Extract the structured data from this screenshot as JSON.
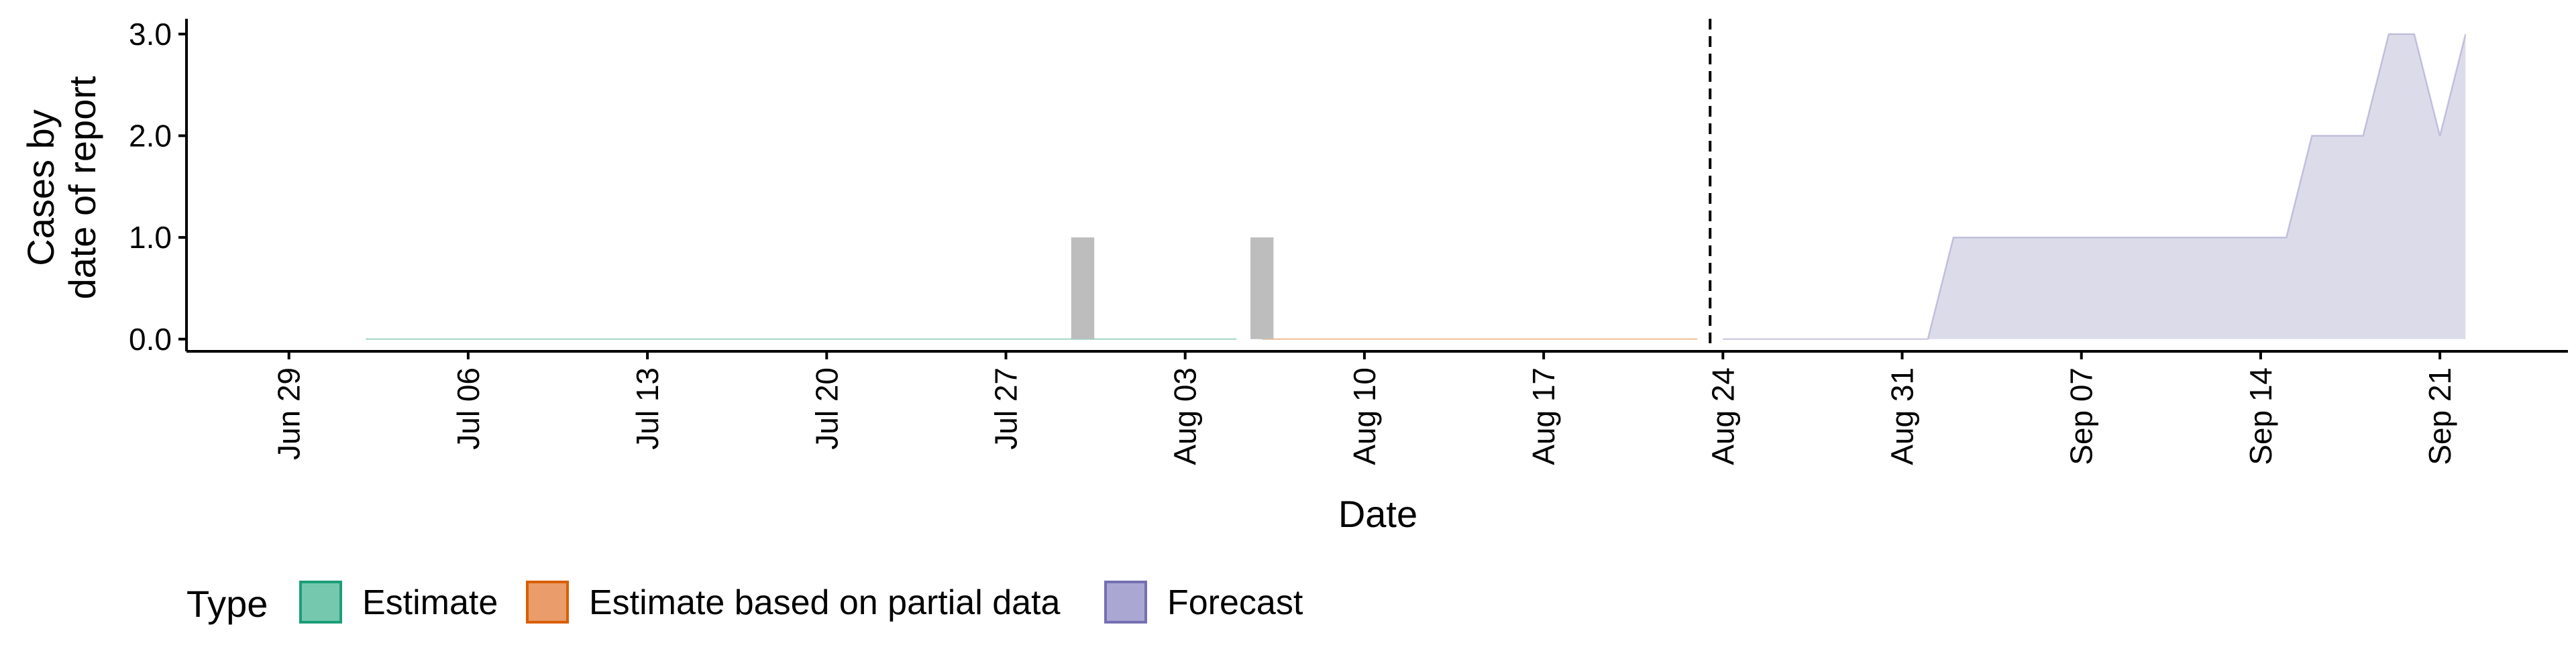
{
  "chart_data": {
    "type": "area",
    "xlabel": "Date",
    "ylabel_lines": [
      "Cases by",
      "date of report"
    ],
    "ylim": [
      -0.12,
      3.15
    ],
    "xlim": [
      "2020-06-25",
      "2020-09-26"
    ],
    "y_ticks": [
      {
        "value": 0,
        "label": "0.0"
      },
      {
        "value": 1,
        "label": "1.0"
      },
      {
        "value": 2,
        "label": "2.0"
      },
      {
        "value": 3,
        "label": "3.0"
      }
    ],
    "x_ticks": [
      {
        "date": "2020-06-29",
        "label": "Jun 29"
      },
      {
        "date": "2020-07-06",
        "label": "Jul 06"
      },
      {
        "date": "2020-07-13",
        "label": "Jul 13"
      },
      {
        "date": "2020-07-20",
        "label": "Jul 20"
      },
      {
        "date": "2020-07-27",
        "label": "Jul 27"
      },
      {
        "date": "2020-08-03",
        "label": "Aug 03"
      },
      {
        "date": "2020-08-10",
        "label": "Aug 10"
      },
      {
        "date": "2020-08-17",
        "label": "Aug 17"
      },
      {
        "date": "2020-08-24",
        "label": "Aug 24"
      },
      {
        "date": "2020-08-31",
        "label": "Aug 31"
      },
      {
        "date": "2020-09-07",
        "label": "Sep 07"
      },
      {
        "date": "2020-09-14",
        "label": "Sep 14"
      },
      {
        "date": "2020-09-21",
        "label": "Sep 21"
      }
    ],
    "observed_bars": [
      {
        "date": "2020-07-30",
        "value": 1
      },
      {
        "date": "2020-08-06",
        "value": 1
      }
    ],
    "series": [
      {
        "name": "Estimate",
        "color": "#1b9e77",
        "fill": "#66c2a5",
        "points": [
          {
            "x": "2020-07-02",
            "y": 0
          },
          {
            "x": "2020-08-05",
            "y": 0
          }
        ]
      },
      {
        "name": "Estimate based on partial data",
        "color": "#d95f02",
        "fill": "#e8915a",
        "points": [
          {
            "x": "2020-08-06",
            "y": 0
          },
          {
            "x": "2020-08-23",
            "y": 0
          }
        ]
      },
      {
        "name": "Forecast",
        "color": "#7570b3",
        "fill": "#dcdbe9",
        "points": [
          {
            "x": "2020-08-24",
            "y": 0
          },
          {
            "x": "2020-08-25",
            "y": 0
          },
          {
            "x": "2020-08-26",
            "y": 0
          },
          {
            "x": "2020-08-27",
            "y": 0
          },
          {
            "x": "2020-08-28",
            "y": 0
          },
          {
            "x": "2020-08-29",
            "y": 0
          },
          {
            "x": "2020-08-30",
            "y": 0
          },
          {
            "x": "2020-08-31",
            "y": 0
          },
          {
            "x": "2020-09-01",
            "y": 0
          },
          {
            "x": "2020-09-02",
            "y": 1
          },
          {
            "x": "2020-09-03",
            "y": 1
          },
          {
            "x": "2020-09-04",
            "y": 1
          },
          {
            "x": "2020-09-05",
            "y": 1
          },
          {
            "x": "2020-09-06",
            "y": 1
          },
          {
            "x": "2020-09-07",
            "y": 1
          },
          {
            "x": "2020-09-08",
            "y": 1
          },
          {
            "x": "2020-09-09",
            "y": 1
          },
          {
            "x": "2020-09-10",
            "y": 1
          },
          {
            "x": "2020-09-11",
            "y": 1
          },
          {
            "x": "2020-09-12",
            "y": 1
          },
          {
            "x": "2020-09-13",
            "y": 1
          },
          {
            "x": "2020-09-14",
            "y": 1
          },
          {
            "x": "2020-09-15",
            "y": 1
          },
          {
            "x": "2020-09-16",
            "y": 2
          },
          {
            "x": "2020-09-17",
            "y": 2
          },
          {
            "x": "2020-09-18",
            "y": 2
          },
          {
            "x": "2020-09-19",
            "y": 3
          },
          {
            "x": "2020-09-20",
            "y": 3
          },
          {
            "x": "2020-09-21",
            "y": 2
          },
          {
            "x": "2020-09-22",
            "y": 3
          }
        ]
      }
    ],
    "vline": {
      "date": "2020-08-23",
      "style": "dashed"
    },
    "grid": false,
    "legend": {
      "title": "Type",
      "position": "bottom",
      "entries": [
        "Estimate",
        "Estimate based on partial data",
        "Forecast"
      ]
    },
    "colors": {
      "bar": "#bdbdbd",
      "axis": "#000000"
    }
  }
}
